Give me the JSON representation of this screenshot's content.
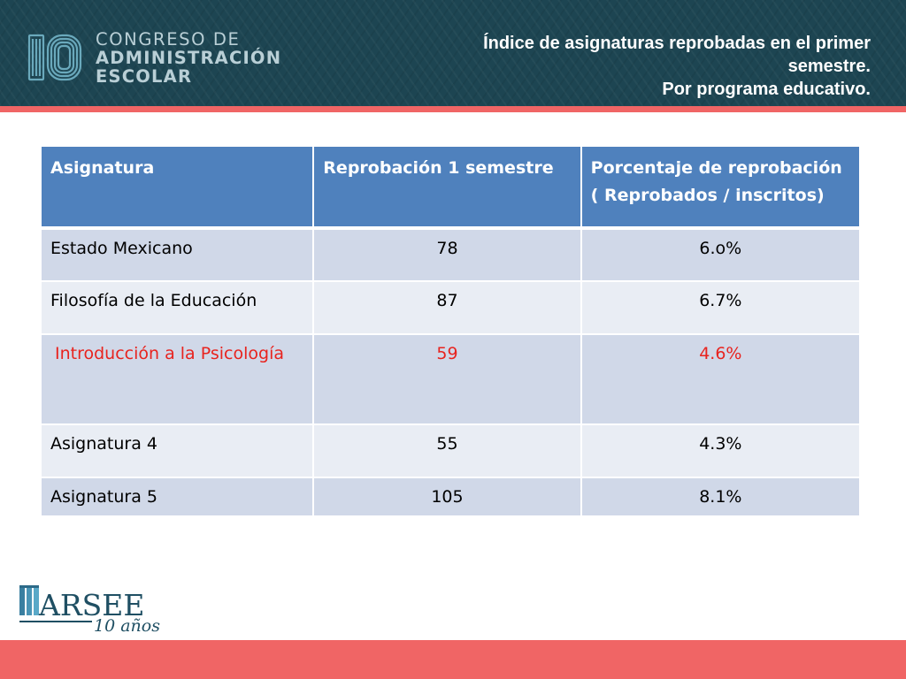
{
  "header": {
    "brand": {
      "mark_text": "10",
      "line1": "CONGRESO DE",
      "line2": "ADMINISTRACIÓN",
      "line3": "ESCOLAR"
    },
    "title_lines": [
      "Índice de  asignaturas reprobadas en el primer",
      "semestre.",
      "Por programa educativo."
    ],
    "accent_color": "#f06565",
    "background_color": "#1d4552"
  },
  "table": {
    "header_color": "#4f81bd",
    "headers": {
      "col1": "Asignatura",
      "col2": "Reprobación 1 semestre",
      "col3_line1": "Porcentaje de reprobación",
      "col3_line2": "( Reprobados / inscritos)"
    },
    "rows": [
      {
        "subject": "Estado Mexicano",
        "failed": "78",
        "percent": "6.o%"
      },
      {
        "subject": "Filosofía de la Educación",
        "failed": "87",
        "percent": "6.7%"
      },
      {
        "subject": "Introducción a la Psicología",
        "failed": "59",
        "percent": "4.6%",
        "highlight_color": "#e8231e"
      },
      {
        "subject": "Asignatura 4",
        "failed": "55",
        "percent": "4.3%"
      },
      {
        "subject": "Asignatura 5",
        "failed": "105",
        "percent": "8.1%"
      }
    ]
  },
  "footer": {
    "logo_text": "ARSEE",
    "logo_subtext": "10 años"
  }
}
